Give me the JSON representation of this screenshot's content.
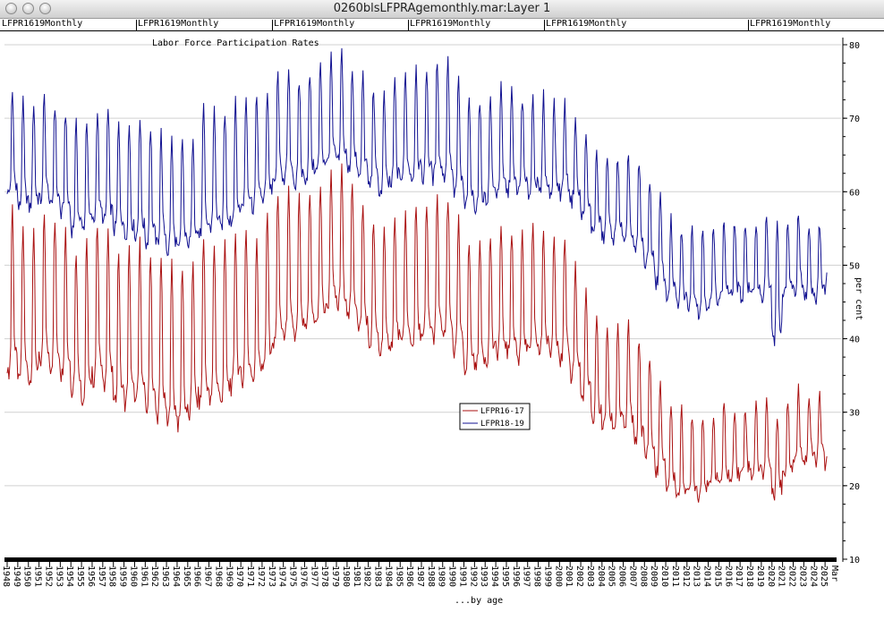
{
  "window": {
    "title": "0260blsLFPRAgemonthly.mar:Layer 1"
  },
  "header_tabs": [
    "LFPR1619Monthly",
    "LFPR1619Monthly",
    "LFPR1619Monthly",
    "LFPR1619Monthly",
    "LFPR1619Monthly",
    "LFPR1619Monthly"
  ],
  "colors": {
    "series_16_17": "#aa1111",
    "series_18_19": "#101090",
    "grid": "#d0d0d0"
  },
  "chart_data": {
    "type": "line",
    "title": "Labor Force Participation Rates",
    "xlabel": "...by age",
    "ylabel": "per cent",
    "ylim": [
      10,
      80
    ],
    "yticks": [
      10,
      20,
      30,
      40,
      50,
      60,
      70,
      80
    ],
    "grid": true,
    "legend_placement": "center",
    "x_tick_labels": [
      "1948",
      "1949",
      "1950",
      "1951",
      "1952",
      "1953",
      "1954",
      "1955",
      "1956",
      "1957",
      "1958",
      "1959",
      "1960",
      "1961",
      "1962",
      "1963",
      "1964",
      "1965",
      "1966",
      "1967",
      "1968",
      "1969",
      "1970",
      "1971",
      "1972",
      "1973",
      "1974",
      "1975",
      "1976",
      "1977",
      "1978",
      "1979",
      "1980",
      "1981",
      "1982",
      "1983",
      "1984",
      "1985",
      "1986",
      "1987",
      "1988",
      "1989",
      "1990",
      "1991",
      "1992",
      "1993",
      "1994",
      "1995",
      "1996",
      "1997",
      "1998",
      "1999",
      "2000",
      "2001",
      "2002",
      "2003",
      "2004",
      "2005",
      "2006",
      "2007",
      "2008",
      "2009",
      "2010",
      "2011",
      "2012",
      "2013",
      "2014",
      "2015",
      "2016",
      "2017",
      "2018",
      "2019",
      "2020",
      "2021",
      "2022",
      "2023",
      "2024",
      "2025"
    ],
    "x_end_label": "Mar",
    "series": [
      {
        "name": "LFPR16-17",
        "frequency": "monthly, strong summer peak",
        "annual": [
          {
            "year": 1948,
            "low": 34,
            "peak": 58
          },
          {
            "year": 1949,
            "low": 33,
            "peak": 55
          },
          {
            "year": 1950,
            "low": 33,
            "peak": 54
          },
          {
            "year": 1951,
            "low": 35,
            "peak": 57
          },
          {
            "year": 1952,
            "low": 35,
            "peak": 56
          },
          {
            "year": 1953,
            "low": 34,
            "peak": 55
          },
          {
            "year": 1954,
            "low": 32,
            "peak": 52
          },
          {
            "year": 1955,
            "low": 30,
            "peak": 53
          },
          {
            "year": 1956,
            "low": 33,
            "peak": 56
          },
          {
            "year": 1957,
            "low": 32,
            "peak": 55
          },
          {
            "year": 1958,
            "low": 30,
            "peak": 52
          },
          {
            "year": 1959,
            "low": 30,
            "peak": 52
          },
          {
            "year": 1960,
            "low": 30,
            "peak": 53
          },
          {
            "year": 1961,
            "low": 29,
            "peak": 52
          },
          {
            "year": 1962,
            "low": 28,
            "peak": 51
          },
          {
            "year": 1963,
            "low": 27,
            "peak": 50
          },
          {
            "year": 1964,
            "low": 27,
            "peak": 50
          },
          {
            "year": 1965,
            "low": 28,
            "peak": 51
          },
          {
            "year": 1966,
            "low": 30,
            "peak": 54
          },
          {
            "year": 1967,
            "low": 30,
            "peak": 53
          },
          {
            "year": 1968,
            "low": 30,
            "peak": 53
          },
          {
            "year": 1969,
            "low": 32,
            "peak": 55
          },
          {
            "year": 1970,
            "low": 33,
            "peak": 55
          },
          {
            "year": 1971,
            "low": 33,
            "peak": 54
          },
          {
            "year": 1972,
            "low": 35,
            "peak": 57
          },
          {
            "year": 1973,
            "low": 38,
            "peak": 60
          },
          {
            "year": 1974,
            "low": 39,
            "peak": 60
          },
          {
            "year": 1975,
            "low": 39,
            "peak": 59
          },
          {
            "year": 1976,
            "low": 40,
            "peak": 60
          },
          {
            "year": 1977,
            "low": 41,
            "peak": 61
          },
          {
            "year": 1978,
            "low": 43,
            "peak": 63
          },
          {
            "year": 1979,
            "low": 43,
            "peak": 63
          },
          {
            "year": 1980,
            "low": 42,
            "peak": 61
          },
          {
            "year": 1981,
            "low": 40,
            "peak": 58
          },
          {
            "year": 1982,
            "low": 38,
            "peak": 56
          },
          {
            "year": 1983,
            "low": 37,
            "peak": 55
          },
          {
            "year": 1984,
            "low": 38,
            "peak": 56
          },
          {
            "year": 1985,
            "low": 38,
            "peak": 57
          },
          {
            "year": 1986,
            "low": 38,
            "peak": 58
          },
          {
            "year": 1987,
            "low": 39,
            "peak": 58
          },
          {
            "year": 1988,
            "low": 39,
            "peak": 59
          },
          {
            "year": 1989,
            "low": 39,
            "peak": 59
          },
          {
            "year": 1990,
            "low": 37,
            "peak": 56
          },
          {
            "year": 1991,
            "low": 35,
            "peak": 53
          },
          {
            "year": 1992,
            "low": 35,
            "peak": 53
          },
          {
            "year": 1993,
            "low": 36,
            "peak": 54
          },
          {
            "year": 1994,
            "low": 37,
            "peak": 55
          },
          {
            "year": 1995,
            "low": 37,
            "peak": 55
          },
          {
            "year": 1996,
            "low": 36,
            "peak": 55
          },
          {
            "year": 1997,
            "low": 37,
            "peak": 55
          },
          {
            "year": 1998,
            "low": 37,
            "peak": 55
          },
          {
            "year": 1999,
            "low": 37,
            "peak": 54
          },
          {
            "year": 2000,
            "low": 36,
            "peak": 53
          },
          {
            "year": 2001,
            "low": 34,
            "peak": 50
          },
          {
            "year": 2002,
            "low": 31,
            "peak": 46
          },
          {
            "year": 2003,
            "low": 28,
            "peak": 43
          },
          {
            "year": 2004,
            "low": 27,
            "peak": 42
          },
          {
            "year": 2005,
            "low": 27,
            "peak": 42
          },
          {
            "year": 2006,
            "low": 27,
            "peak": 42
          },
          {
            "year": 2007,
            "low": 25,
            "peak": 40
          },
          {
            "year": 2008,
            "low": 23,
            "peak": 38
          },
          {
            "year": 2009,
            "low": 21,
            "peak": 34
          },
          {
            "year": 2010,
            "low": 19,
            "peak": 31
          },
          {
            "year": 2011,
            "low": 18,
            "peak": 30
          },
          {
            "year": 2012,
            "low": 18,
            "peak": 30
          },
          {
            "year": 2013,
            "low": 18,
            "peak": 30
          },
          {
            "year": 2014,
            "low": 19,
            "peak": 30
          },
          {
            "year": 2015,
            "low": 20,
            "peak": 31
          },
          {
            "year": 2016,
            "low": 20,
            "peak": 31
          },
          {
            "year": 2017,
            "low": 21,
            "peak": 31
          },
          {
            "year": 2018,
            "low": 21,
            "peak": 31
          },
          {
            "year": 2019,
            "low": 21,
            "peak": 32
          },
          {
            "year": 2020,
            "low": 18,
            "peak": 30
          },
          {
            "year": 2021,
            "low": 21,
            "peak": 32
          },
          {
            "year": 2022,
            "low": 23,
            "peak": 33
          },
          {
            "year": 2023,
            "low": 23,
            "peak": 32
          },
          {
            "year": 2024,
            "low": 23,
            "peak": 32
          },
          {
            "year": 2025,
            "low": 22,
            "peak": 24
          }
        ]
      },
      {
        "name": "LFPR18-19",
        "frequency": "monthly, strong summer peak",
        "annual": [
          {
            "year": 1948,
            "low": 59,
            "peak": 73
          },
          {
            "year": 1949,
            "low": 57,
            "peak": 72
          },
          {
            "year": 1950,
            "low": 57,
            "peak": 72
          },
          {
            "year": 1951,
            "low": 58,
            "peak": 73
          },
          {
            "year": 1952,
            "low": 57,
            "peak": 72
          },
          {
            "year": 1953,
            "low": 56,
            "peak": 71
          },
          {
            "year": 1954,
            "low": 54,
            "peak": 69
          },
          {
            "year": 1955,
            "low": 54,
            "peak": 70
          },
          {
            "year": 1956,
            "low": 55,
            "peak": 71
          },
          {
            "year": 1957,
            "low": 55,
            "peak": 71
          },
          {
            "year": 1958,
            "low": 54,
            "peak": 69
          },
          {
            "year": 1959,
            "low": 53,
            "peak": 69
          },
          {
            "year": 1960,
            "low": 53,
            "peak": 70
          },
          {
            "year": 1961,
            "low": 52,
            "peak": 69
          },
          {
            "year": 1962,
            "low": 52,
            "peak": 68
          },
          {
            "year": 1963,
            "low": 51,
            "peak": 67
          },
          {
            "year": 1964,
            "low": 51,
            "peak": 67
          },
          {
            "year": 1965,
            "low": 52,
            "peak": 68
          },
          {
            "year": 1966,
            "low": 53,
            "peak": 71
          },
          {
            "year": 1967,
            "low": 54,
            "peak": 71
          },
          {
            "year": 1968,
            "low": 54,
            "peak": 71
          },
          {
            "year": 1969,
            "low": 55,
            "peak": 72
          },
          {
            "year": 1970,
            "low": 57,
            "peak": 73
          },
          {
            "year": 1971,
            "low": 57,
            "peak": 73
          },
          {
            "year": 1972,
            "low": 58,
            "peak": 74
          },
          {
            "year": 1973,
            "low": 60,
            "peak": 76
          },
          {
            "year": 1974,
            "low": 61,
            "peak": 76
          },
          {
            "year": 1975,
            "low": 60,
            "peak": 75
          },
          {
            "year": 1976,
            "low": 61,
            "peak": 76
          },
          {
            "year": 1977,
            "low": 62,
            "peak": 77
          },
          {
            "year": 1978,
            "low": 63,
            "peak": 78
          },
          {
            "year": 1979,
            "low": 63,
            "peak": 79
          },
          {
            "year": 1980,
            "low": 62,
            "peak": 77
          },
          {
            "year": 1981,
            "low": 61,
            "peak": 76
          },
          {
            "year": 1982,
            "low": 60,
            "peak": 74
          },
          {
            "year": 1983,
            "low": 59,
            "peak": 73
          },
          {
            "year": 1984,
            "low": 60,
            "peak": 75
          },
          {
            "year": 1985,
            "low": 61,
            "peak": 76
          },
          {
            "year": 1986,
            "low": 61,
            "peak": 77
          },
          {
            "year": 1987,
            "low": 61,
            "peak": 77
          },
          {
            "year": 1988,
            "low": 61,
            "peak": 78
          },
          {
            "year": 1989,
            "low": 61,
            "peak": 78
          },
          {
            "year": 1990,
            "low": 59,
            "peak": 75
          },
          {
            "year": 1991,
            "low": 57,
            "peak": 72
          },
          {
            "year": 1992,
            "low": 57,
            "peak": 72
          },
          {
            "year": 1993,
            "low": 58,
            "peak": 73
          },
          {
            "year": 1994,
            "low": 59,
            "peak": 74
          },
          {
            "year": 1995,
            "low": 59,
            "peak": 74
          },
          {
            "year": 1996,
            "low": 59,
            "peak": 73
          },
          {
            "year": 1997,
            "low": 59,
            "peak": 73
          },
          {
            "year": 1998,
            "low": 59,
            "peak": 73
          },
          {
            "year": 1999,
            "low": 59,
            "peak": 72
          },
          {
            "year": 2000,
            "low": 59,
            "peak": 72
          },
          {
            "year": 2001,
            "low": 58,
            "peak": 70
          },
          {
            "year": 2002,
            "low": 56,
            "peak": 67
          },
          {
            "year": 2003,
            "low": 54,
            "peak": 65
          },
          {
            "year": 2004,
            "low": 53,
            "peak": 65
          },
          {
            "year": 2005,
            "low": 53,
            "peak": 65
          },
          {
            "year": 2006,
            "low": 52,
            "peak": 65
          },
          {
            "year": 2007,
            "low": 51,
            "peak": 64
          },
          {
            "year": 2008,
            "low": 49,
            "peak": 62
          },
          {
            "year": 2009,
            "low": 47,
            "peak": 59
          },
          {
            "year": 2010,
            "low": 45,
            "peak": 56
          },
          {
            "year": 2011,
            "low": 44,
            "peak": 55
          },
          {
            "year": 2012,
            "low": 44,
            "peak": 55
          },
          {
            "year": 2013,
            "low": 43,
            "peak": 55
          },
          {
            "year": 2014,
            "low": 44,
            "peak": 55
          },
          {
            "year": 2015,
            "low": 45,
            "peak": 56
          },
          {
            "year": 2016,
            "low": 45,
            "peak": 56
          },
          {
            "year": 2017,
            "low": 45,
            "peak": 56
          },
          {
            "year": 2018,
            "low": 45,
            "peak": 56
          },
          {
            "year": 2019,
            "low": 45,
            "peak": 57
          },
          {
            "year": 2020,
            "low": 39,
            "peak": 56
          },
          {
            "year": 2021,
            "low": 45,
            "peak": 56
          },
          {
            "year": 2022,
            "low": 46,
            "peak": 57
          },
          {
            "year": 2023,
            "low": 45,
            "peak": 56
          },
          {
            "year": 2024,
            "low": 45,
            "peak": 56
          },
          {
            "year": 2025,
            "low": 46,
            "peak": 49
          }
        ]
      }
    ]
  }
}
